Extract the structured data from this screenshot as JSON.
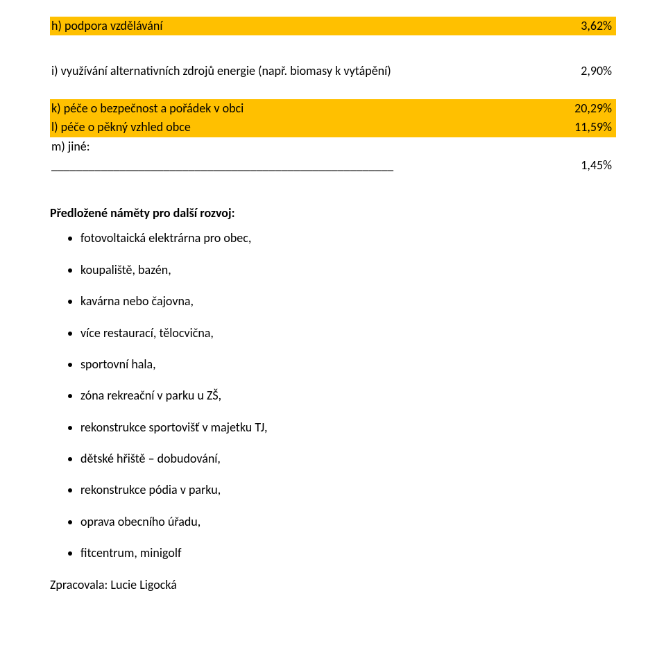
{
  "colors": {
    "highlight": "#ffc000",
    "background": "#ffffff",
    "text": "#000000"
  },
  "fonts": {
    "family": "Calibri, Arial, sans-serif",
    "body_size_pt": 12,
    "title_weight": "700"
  },
  "rows": {
    "h": {
      "label": "h) podpora vzdělávání",
      "pct": "3,62%",
      "highlight": true
    },
    "i": {
      "label": "i) využívání alternativních zdrojů energie (např. biomasy k vytápění)",
      "pct": "2,90%",
      "highlight": false
    },
    "k": {
      "label": "k) péče o bezpečnost a pořádek v obci",
      "pct": "20,29%",
      "highlight": true
    },
    "l": {
      "label": "l) péče o pěkný vzhled obce",
      "pct": "11,59%",
      "highlight": true
    },
    "m_label": {
      "label": "m) jiné:",
      "highlight": false
    },
    "m_fill": {
      "label": "_______________________________________________________",
      "pct": "1,45%",
      "highlight": false
    }
  },
  "section_title": "Předložené náměty pro další rozvoj:",
  "bullets": [
    "fotovoltaická elektrárna pro obec,",
    "koupaliště, bazén,",
    "kavárna nebo čajovna,",
    "více restaurací, tělocvična,",
    "sportovní hala,",
    "zóna rekreační v parku u ZŠ,",
    "rekonstrukce sportovišť v majetku TJ,",
    "dětské hřiště – dobudování,",
    "rekonstrukce pódia v parku,",
    "oprava obecního úřadu,",
    "fitcentrum, minigolf"
  ],
  "footer": "Zpracovala: Lucie Ligocká"
}
